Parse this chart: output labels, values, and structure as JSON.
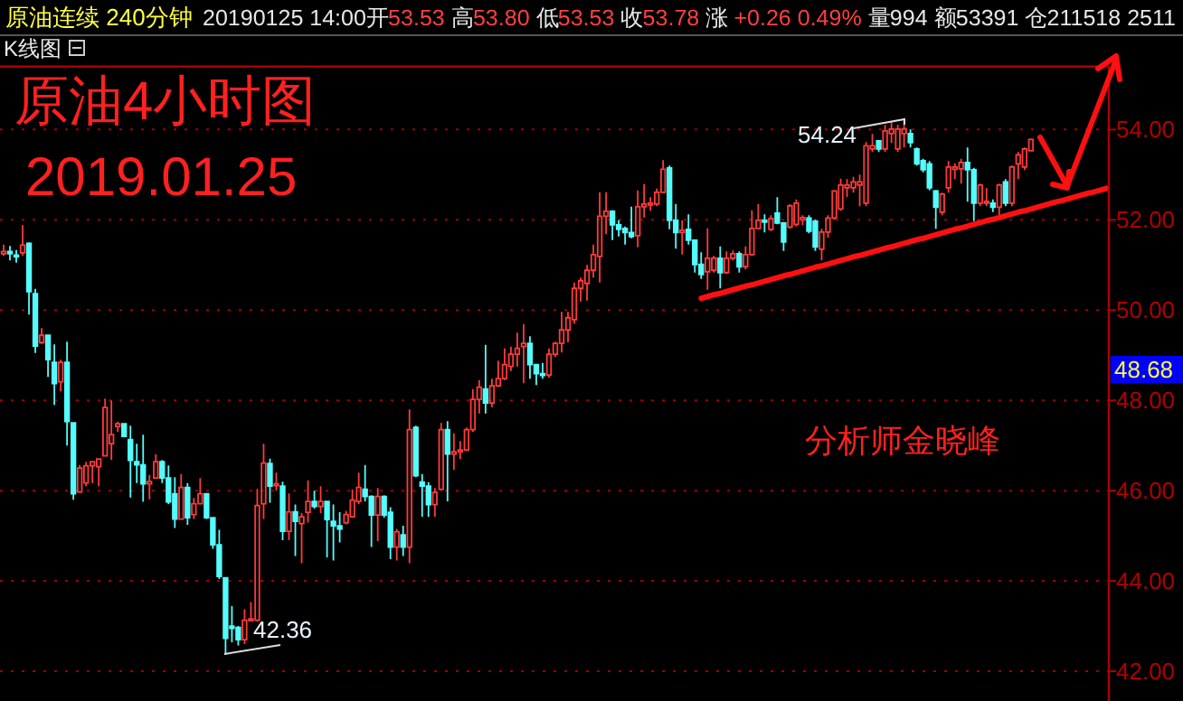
{
  "chart_data": {
    "type": "candlestick",
    "title": "原油4小时图",
    "subtitle": "2019.01.25",
    "annotations": [
      "原油连续 240分钟",
      "20190125 14:00开53.53 高53.80 低53.53 收53.78 涨 +0.26 0.49% 量994 额53391 仓211518 2511",
      "K线图",
      "分析师金晓峰",
      "54.24",
      "42.36",
      "48.68"
    ],
    "categories": [
      null,
      null,
      null,
      null,
      null,
      null,
      null,
      null,
      null,
      null,
      null,
      null,
      null,
      null,
      null,
      null,
      null,
      null,
      null,
      null,
      null,
      null,
      null,
      null,
      null,
      null,
      null,
      null,
      null,
      null,
      null,
      null,
      null,
      null,
      null,
      null,
      null,
      null,
      null,
      null,
      null,
      null,
      null,
      null,
      null,
      null,
      null,
      null,
      null,
      null,
      null,
      null,
      null,
      null,
      null,
      null,
      null,
      null,
      null,
      null,
      null,
      null,
      null,
      null,
      null,
      null,
      null,
      null,
      null,
      null,
      null,
      null,
      null,
      null,
      null,
      null,
      null,
      null,
      null,
      null,
      null,
      null,
      null,
      null,
      null,
      null,
      null,
      null,
      null,
      null,
      null,
      null,
      null,
      null,
      null,
      null,
      null,
      null,
      null,
      null,
      null,
      null,
      null,
      null,
      null,
      null,
      null,
      null,
      null,
      null,
      null,
      null,
      null,
      null,
      null,
      null,
      null,
      null,
      null,
      null,
      null,
      null,
      null,
      null,
      null,
      null,
      null,
      null,
      null,
      null,
      null,
      null,
      null,
      null,
      null,
      null,
      null,
      null,
      null,
      null,
      null,
      null,
      null,
      null,
      null,
      null,
      null,
      null,
      null,
      null,
      null,
      null,
      null,
      null,
      null,
      null,
      null,
      null,
      null,
      null,
      null,
      null,
      null,
      null,
      null,
      null,
      null,
      null,
      null,
      null,
      null,
      null,
      null,
      null,
      null
    ],
    "ohlc": [
      [
        51.25,
        51.45,
        51.2,
        51.3
      ],
      [
        51.3,
        51.42,
        51.1,
        51.25
      ],
      [
        51.22,
        51.33,
        51.05,
        51.2
      ],
      [
        51.27,
        51.88,
        51.2,
        51.44
      ],
      [
        51.48,
        51.5,
        49.9,
        50.41
      ],
      [
        50.36,
        50.47,
        49.05,
        49.2
      ],
      [
        49.28,
        49.6,
        49.25,
        49.44
      ],
      [
        49.44,
        49.44,
        48.52,
        48.9
      ],
      [
        48.84,
        49.24,
        47.9,
        48.37
      ],
      [
        48.41,
        48.9,
        48.2,
        48.84
      ],
      [
        48.84,
        49.3,
        47.0,
        47.53
      ],
      [
        47.5,
        47.5,
        45.8,
        45.93
      ],
      [
        45.97,
        46.57,
        45.95,
        46.5
      ],
      [
        46.17,
        46.64,
        46.1,
        46.55
      ],
      [
        46.55,
        46.66,
        46.17,
        46.64
      ],
      [
        46.53,
        46.7,
        46.1,
        46.7
      ],
      [
        46.77,
        48.04,
        46.77,
        47.84
      ],
      [
        47.04,
        48.0,
        46.68,
        47.24
      ],
      [
        47.42,
        47.53,
        47.3,
        47.48
      ],
      [
        47.48,
        47.5,
        47.2,
        47.2
      ],
      [
        47.13,
        47.44,
        45.85,
        46.67
      ],
      [
        46.64,
        47.04,
        46.17,
        46.57
      ],
      [
        46.57,
        47.24,
        45.75,
        46.15
      ],
      [
        46.15,
        46.35,
        45.81,
        46.2
      ],
      [
        46.28,
        46.81,
        46.28,
        46.64
      ],
      [
        46.64,
        46.68,
        46.17,
        46.28
      ],
      [
        46.28,
        46.56,
        45.7,
        45.75
      ],
      [
        45.93,
        46.3,
        45.17,
        45.37
      ],
      [
        45.37,
        46.37,
        45.37,
        46.07
      ],
      [
        46.07,
        46.17,
        45.24,
        45.4
      ],
      [
        45.47,
        45.84,
        45.37,
        45.71
      ],
      [
        45.71,
        46.28,
        45.7,
        45.93
      ],
      [
        45.93,
        45.95,
        45.37,
        45.4
      ],
      [
        45.4,
        45.4,
        44.71,
        44.8
      ],
      [
        44.8,
        45.13,
        44.04,
        44.1
      ],
      [
        44.07,
        44.07,
        42.36,
        42.73
      ],
      [
        43.0,
        43.44,
        42.64,
        42.95
      ],
      [
        42.97,
        43.0,
        42.57,
        42.7
      ],
      [
        42.7,
        43.37,
        42.6,
        43.13
      ],
      [
        43.12,
        43.53,
        43.1,
        43.16
      ],
      [
        43.13,
        46.04,
        43.1,
        45.67
      ],
      [
        45.71,
        47.04,
        45.37,
        46.61
      ],
      [
        46.6,
        46.71,
        45.73,
        46.1
      ],
      [
        46.12,
        46.4,
        46.0,
        46.15
      ],
      [
        46.1,
        46.2,
        44.9,
        45.1
      ],
      [
        45.1,
        45.94,
        44.9,
        45.53
      ],
      [
        45.53,
        45.69,
        44.55,
        45.32
      ],
      [
        45.27,
        45.5,
        44.39,
        45.42
      ],
      [
        45.52,
        46.23,
        45.29,
        45.76
      ],
      [
        45.76,
        46.0,
        45.6,
        45.65
      ],
      [
        45.65,
        46.1,
        45.5,
        45.76
      ],
      [
        45.76,
        45.76,
        44.52,
        45.36
      ],
      [
        45.32,
        45.69,
        44.45,
        45.22
      ],
      [
        45.22,
        45.52,
        44.85,
        45.15
      ],
      [
        45.29,
        45.55,
        45.25,
        45.47
      ],
      [
        45.42,
        46.03,
        45.4,
        45.79
      ],
      [
        45.76,
        46.4,
        45.7,
        46.07
      ],
      [
        46.03,
        46.57,
        45.76,
        45.87
      ],
      [
        45.87,
        45.9,
        44.75,
        45.46
      ],
      [
        45.46,
        46.06,
        44.88,
        45.87
      ],
      [
        45.87,
        45.9,
        45.4,
        45.46
      ],
      [
        45.52,
        45.63,
        44.48,
        44.75
      ],
      [
        44.75,
        45.15,
        44.45,
        45.09
      ],
      [
        45.02,
        45.22,
        44.55,
        44.75
      ],
      [
        44.75,
        47.8,
        44.39,
        47.35
      ],
      [
        47.4,
        47.44,
        46.3,
        46.33
      ],
      [
        46.19,
        46.37,
        45.42,
        46.1
      ],
      [
        46.1,
        46.19,
        45.42,
        45.69
      ],
      [
        45.69,
        46.06,
        45.42,
        45.96
      ],
      [
        46.03,
        47.5,
        46.0,
        47.35
      ],
      [
        47.35,
        47.54,
        45.76,
        46.81
      ],
      [
        46.81,
        47.27,
        46.46,
        46.86
      ],
      [
        46.86,
        47.1,
        46.7,
        46.9
      ],
      [
        46.9,
        47.4,
        46.88,
        47.35
      ],
      [
        47.35,
        48.25,
        47.3,
        48.02
      ],
      [
        48.02,
        48.45,
        47.71,
        48.29
      ],
      [
        48.25,
        49.23,
        47.71,
        47.94
      ],
      [
        47.94,
        48.48,
        47.85,
        48.32
      ],
      [
        48.32,
        48.88,
        48.3,
        48.48
      ],
      [
        48.48,
        49.15,
        48.45,
        48.79
      ],
      [
        48.75,
        49.19,
        48.65,
        49.02
      ],
      [
        49.02,
        49.5,
        48.75,
        49.15
      ],
      [
        49.19,
        49.69,
        48.38,
        49.26
      ],
      [
        49.26,
        49.42,
        48.48,
        48.79
      ],
      [
        48.79,
        48.8,
        48.34,
        48.59
      ],
      [
        48.59,
        48.83,
        48.48,
        48.55
      ],
      [
        48.56,
        49.15,
        48.5,
        49.02
      ],
      [
        49.02,
        49.3,
        48.96,
        49.26
      ],
      [
        49.26,
        49.96,
        49.06,
        49.56
      ],
      [
        49.56,
        49.96,
        49.29,
        49.83
      ],
      [
        49.79,
        50.61,
        49.7,
        50.48
      ],
      [
        50.48,
        50.72,
        50.19,
        50.65
      ],
      [
        50.59,
        51.0,
        50.21,
        50.88
      ],
      [
        50.88,
        51.45,
        50.72,
        51.23
      ],
      [
        51.19,
        52.61,
        50.61,
        52.08
      ],
      [
        52.08,
        52.61,
        51.68,
        52.19
      ],
      [
        52.19,
        52.21,
        51.55,
        51.89
      ],
      [
        51.89,
        51.99,
        51.63,
        51.79
      ],
      [
        51.81,
        51.85,
        51.45,
        51.72
      ],
      [
        51.72,
        52.29,
        51.59,
        51.63
      ],
      [
        51.65,
        52.65,
        51.39,
        52.29
      ],
      [
        52.29,
        52.79,
        52.05,
        52.35
      ],
      [
        52.33,
        52.5,
        52.2,
        52.37
      ],
      [
        52.35,
        52.69,
        52.3,
        52.61
      ],
      [
        52.61,
        53.32,
        52.6,
        53.12
      ],
      [
        53.15,
        53.2,
        51.79,
        51.99
      ],
      [
        51.99,
        52.35,
        51.36,
        51.72
      ],
      [
        51.72,
        51.99,
        51.23,
        51.77
      ],
      [
        51.79,
        52.12,
        51.45,
        51.55
      ],
      [
        51.55,
        51.55,
        50.83,
        51.01
      ],
      [
        51.01,
        51.28,
        50.69,
        50.79
      ],
      [
        50.85,
        51.81,
        50.45,
        51.15
      ],
      [
        50.88,
        51.2,
        50.83,
        51.15
      ],
      [
        51.15,
        51.41,
        50.48,
        50.83
      ],
      [
        50.83,
        51.3,
        50.8,
        51.15
      ],
      [
        51.15,
        51.32,
        51.1,
        51.25
      ],
      [
        51.25,
        51.3,
        50.83,
        50.96
      ],
      [
        50.96,
        51.41,
        50.9,
        51.23
      ],
      [
        51.23,
        52.21,
        51.2,
        51.81
      ],
      [
        51.81,
        52.35,
        51.79,
        51.99
      ],
      [
        51.99,
        52.12,
        51.72,
        51.95
      ],
      [
        51.79,
        52.1,
        51.75,
        52.03
      ],
      [
        52.15,
        52.5,
        51.9,
        51.93
      ],
      [
        51.93,
        51.95,
        51.31,
        51.51
      ],
      [
        51.84,
        52.35,
        51.8,
        52.31
      ],
      [
        51.9,
        52.45,
        51.85,
        52.37
      ],
      [
        52.0,
        52.1,
        51.88,
        52.05
      ],
      [
        52.04,
        52.1,
        51.7,
        51.75
      ],
      [
        51.97,
        52.0,
        51.31,
        51.4
      ],
      [
        51.35,
        51.8,
        51.1,
        51.73
      ],
      [
        51.73,
        52.1,
        51.6,
        52.04
      ],
      [
        52.04,
        52.66,
        52.0,
        52.64
      ],
      [
        52.24,
        52.91,
        52.2,
        52.77
      ],
      [
        52.71,
        52.9,
        52.5,
        52.77
      ],
      [
        52.71,
        52.95,
        52.6,
        52.84
      ],
      [
        52.77,
        53.0,
        52.3,
        52.84
      ],
      [
        52.37,
        53.72,
        52.3,
        53.64
      ],
      [
        53.57,
        53.9,
        53.5,
        53.64
      ],
      [
        53.75,
        53.76,
        53.5,
        53.57
      ],
      [
        53.57,
        54.1,
        53.5,
        53.97
      ],
      [
        53.91,
        54.17,
        53.7,
        54.01
      ],
      [
        53.57,
        54.1,
        53.5,
        54.01
      ],
      [
        53.91,
        54.24,
        53.6,
        54.01
      ],
      [
        53.91,
        54.0,
        53.6,
        53.71
      ],
      [
        53.57,
        53.6,
        53.2,
        53.24
      ],
      [
        53.31,
        53.35,
        53.05,
        53.11
      ],
      [
        53.24,
        53.3,
        52.65,
        52.71
      ],
      [
        52.64,
        52.66,
        51.8,
        52.28
      ],
      [
        52.17,
        52.6,
        52.1,
        52.57
      ],
      [
        52.71,
        53.3,
        52.6,
        53.17
      ],
      [
        53.12,
        53.25,
        52.9,
        53.17
      ],
      [
        53.13,
        53.35,
        52.8,
        53.27
      ],
      [
        53.27,
        53.6,
        52.4,
        53.11
      ],
      [
        53.11,
        53.15,
        51.97,
        52.37
      ],
      [
        52.37,
        52.8,
        52.3,
        52.77
      ],
      [
        52.37,
        52.7,
        52.3,
        52.41
      ],
      [
        52.37,
        52.45,
        52.17,
        52.28
      ],
      [
        52.28,
        52.8,
        52.1,
        52.77
      ],
      [
        52.84,
        52.9,
        52.3,
        52.37
      ],
      [
        52.37,
        53.2,
        52.3,
        53.17
      ],
      [
        53.24,
        53.5,
        52.9,
        53.44
      ],
      [
        53.17,
        53.6,
        53.1,
        53.57
      ],
      [
        53.53,
        53.8,
        53.53,
        53.78
      ],
      null,
      null,
      null,
      null,
      null,
      null,
      null,
      null,
      null,
      null,
      null,
      null
    ],
    "series": [
      {
        "type": "line",
        "color": "#ff1010",
        "values": [
          null,
          null,
          null,
          null,
          null,
          null,
          null,
          null,
          null,
          null,
          null,
          null,
          null,
          null,
          null,
          null,
          null,
          null,
          null,
          null,
          null,
          null,
          null,
          null,
          null,
          null,
          null,
          null,
          null,
          null,
          null,
          null,
          null,
          null,
          null,
          null,
          null,
          null,
          null,
          null,
          null,
          null,
          null,
          null,
          null,
          null,
          null,
          null,
          null,
          null,
          null,
          null,
          null,
          null,
          null,
          null,
          null,
          null,
          null,
          null,
          null,
          null,
          null,
          null,
          null,
          null,
          null,
          null,
          null,
          null,
          null,
          null,
          null,
          null,
          null,
          null,
          null,
          null,
          null,
          null,
          null,
          null,
          null,
          null,
          null,
          null,
          null,
          null,
          null,
          null,
          null,
          null,
          null,
          null,
          null,
          null,
          null,
          null,
          null,
          null,
          null,
          null,
          null,
          null,
          null,
          null,
          null,
          null,
          null,
          null,
          50.26,
          50.3,
          50.34,
          50.37,
          50.41,
          50.45,
          50.49,
          50.53,
          50.56,
          50.6,
          50.64,
          50.68,
          50.72,
          50.76,
          50.79,
          50.83,
          50.87,
          50.91,
          50.95,
          50.98,
          51.02,
          51.06,
          51.1,
          51.14,
          51.18,
          51.21,
          51.25,
          51.29,
          51.33,
          51.37,
          51.4,
          51.44,
          51.48,
          51.52,
          51.56,
          51.59,
          51.63,
          51.67,
          51.71,
          51.75,
          51.79,
          51.82,
          51.86,
          51.9,
          51.94,
          51.98,
          52.01,
          52.05,
          52.09,
          52.13,
          52.17,
          52.2,
          52.24,
          52.28,
          52.32,
          52.36,
          52.4,
          52.43,
          52.47,
          52.51,
          52.55,
          52.59,
          52.62,
          52.66,
          52.7
        ]
      }
    ],
    "ylim": [
      41.4,
      55.4
    ],
    "yticks": [
      {
        "value": 42,
        "label": "42.00"
      },
      {
        "value": 44,
        "label": "44.00"
      },
      {
        "value": 46,
        "label": "46.00"
      },
      {
        "value": 48,
        "label": "48.00"
      },
      {
        "value": 50,
        "label": "50.00"
      },
      {
        "value": 52,
        "label": "52.00"
      },
      {
        "value": 54,
        "label": "54.00"
      }
    ],
    "grid": "y"
  }
}
